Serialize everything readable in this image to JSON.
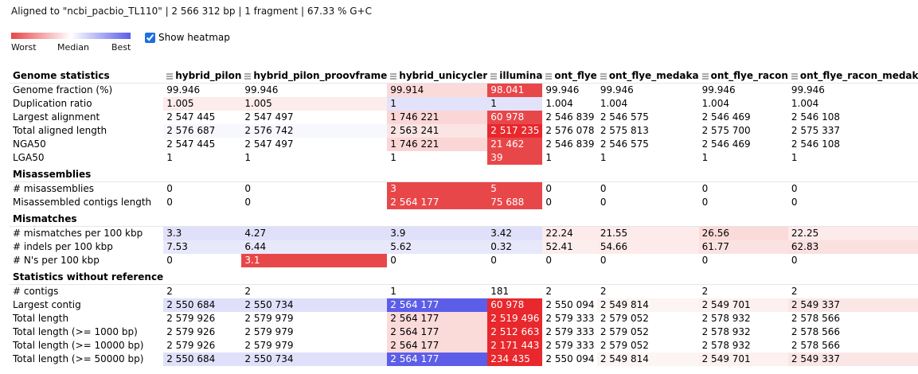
{
  "summary": "Aligned to \"ncbi_pacbio_TL110\" | 2 566 312 bp | 1 fragment | 67.33 % G+C",
  "legend": {
    "worst": "Worst",
    "median": "Median",
    "best": "Best"
  },
  "heatmap_toggle": {
    "label": "Show heatmap",
    "checked": true
  },
  "colors": {
    "worst": "#e8474a",
    "median": "#ffffff",
    "best": "#5d5ee8"
  },
  "columns": [
    "hybrid_pilon",
    "hybrid_pilon_proovframe",
    "hybrid_unicycler",
    "illumina",
    "ont_flye",
    "ont_flye_medaka",
    "ont_flye_racon",
    "ont_flye_racon_medaka"
  ],
  "sections": [
    {
      "title": "Genome statistics",
      "rows": [
        {
          "label": "Genome fraction (%)",
          "values": [
            "99.946",
            "99.946",
            "99.914",
            "98.041",
            "99.946",
            "99.946",
            "99.946",
            "99.946"
          ],
          "colors": [
            "",
            "",
            "#fbdada",
            "#e8474a",
            "",
            "",
            "",
            ""
          ]
        },
        {
          "label": "Duplication ratio",
          "values": [
            "1.005",
            "1.005",
            "1",
            "1",
            "1.004",
            "1.004",
            "1.004",
            "1.004"
          ],
          "colors": [
            "#fdecec",
            "#fdecec",
            "#e2e2fb",
            "#e2e2fb",
            "",
            "",
            "",
            ""
          ]
        },
        {
          "label": "Largest alignment",
          "values": [
            "2 547 445",
            "2 547 497",
            "1 746 221",
            "60 978",
            "2 546 839",
            "2 546 575",
            "2 546 469",
            "2 546 108"
          ],
          "colors": [
            "",
            "",
            "#fbd6d6",
            "#e8474a",
            "",
            "",
            "",
            ""
          ]
        },
        {
          "label": "Total aligned length",
          "values": [
            "2 576 687",
            "2 576 742",
            "2 563 241",
            "2 517 235",
            "2 576 078",
            "2 575 813",
            "2 575 700",
            "2 575 337"
          ],
          "colors": [
            "#f7f7fe",
            "#f7f7fe",
            "#fbe4e4",
            "#e8282c",
            "",
            "",
            "",
            ""
          ]
        },
        {
          "label": "NGA50",
          "values": [
            "2 547 445",
            "2 547 497",
            "1 746 221",
            "21 462",
            "2 546 839",
            "2 546 575",
            "2 546 469",
            "2 546 108"
          ],
          "colors": [
            "",
            "",
            "#fbd6d6",
            "#e8474a",
            "",
            "",
            "",
            ""
          ]
        },
        {
          "label": "LGA50",
          "values": [
            "1",
            "1",
            "1",
            "39",
            "1",
            "1",
            "1",
            "1"
          ],
          "colors": [
            "",
            "",
            "",
            "#e8474a",
            "",
            "",
            "",
            ""
          ]
        }
      ]
    },
    {
      "title": "Misassemblies",
      "rows": [
        {
          "label": "# misassemblies",
          "values": [
            "0",
            "0",
            "3",
            "5",
            "0",
            "0",
            "0",
            "0"
          ],
          "colors": [
            "",
            "",
            "#e8474a",
            "#e8474a",
            "",
            "",
            "",
            ""
          ]
        },
        {
          "label": "Misassembled contigs length",
          "values": [
            "0",
            "0",
            "2 564 177",
            "75 688",
            "0",
            "0",
            "0",
            "0"
          ],
          "colors": [
            "",
            "",
            "#e8474a",
            "#e8474a",
            "",
            "",
            "",
            ""
          ]
        }
      ]
    },
    {
      "title": "Mismatches",
      "rows": [
        {
          "label": "# mismatches per 100 kbp",
          "values": [
            "3.3",
            "4.27",
            "3.9",
            "3.42",
            "22.24",
            "21.55",
            "26.56",
            "22.25"
          ],
          "colors": [
            "#e0e0fa",
            "#e0e0fa",
            "#e0e0fa",
            "#e0e0fa",
            "#fdeaea",
            "#fdeaea",
            "#fbdada",
            "#fdeaea"
          ]
        },
        {
          "label": "# indels per 100 kbp",
          "values": [
            "7.53",
            "6.44",
            "5.62",
            "0.32",
            "52.41",
            "54.66",
            "61.77",
            "62.83"
          ],
          "colors": [
            "#e8e8fb",
            "#e8e8fb",
            "#e8e8fb",
            "#e8e8fb",
            "#fdeeee",
            "#fdeaea",
            "#fbe2e2",
            "#fbe0e0"
          ]
        },
        {
          "label": "# N's per 100 kbp",
          "values": [
            "0",
            "3.1",
            "0",
            "0",
            "0",
            "0",
            "0",
            "0"
          ],
          "colors": [
            "",
            "#e8474a",
            "",
            "",
            "",
            "",
            "",
            ""
          ]
        }
      ]
    },
    {
      "title": "Statistics without reference",
      "rows": [
        {
          "label": "# contigs",
          "values": [
            "2",
            "2",
            "1",
            "181",
            "2",
            "2",
            "2",
            "2"
          ],
          "colors": [
            "",
            "",
            "",
            "",
            "",
            "",
            "",
            ""
          ]
        },
        {
          "label": "Largest contig",
          "values": [
            "2 550 684",
            "2 550 734",
            "2 564 177",
            "60 978",
            "2 550 094",
            "2 549 814",
            "2 549 701",
            "2 549 337"
          ],
          "colors": [
            "#e0e0fa",
            "#e0e0fa",
            "#5d5ee8",
            "#e8282c",
            "",
            "#fdf4f4",
            "#fdf0f0",
            "#fbe6e6"
          ]
        },
        {
          "label": "Total length",
          "values": [
            "2 579 926",
            "2 579 979",
            "2 564 177",
            "2 519 496",
            "2 579 333",
            "2 579 052",
            "2 578 932",
            "2 578 566"
          ],
          "colors": [
            "",
            "",
            "#fbdada",
            "#e8282c",
            "",
            "",
            "",
            ""
          ]
        },
        {
          "label": "Total length (>= 1000 bp)",
          "values": [
            "2 579 926",
            "2 579 979",
            "2 564 177",
            "2 512 663",
            "2 579 333",
            "2 579 052",
            "2 578 932",
            "2 578 566"
          ],
          "colors": [
            "",
            "",
            "#fbdada",
            "#e8282c",
            "",
            "",
            "",
            ""
          ]
        },
        {
          "label": "Total length (>= 10000 bp)",
          "values": [
            "2 579 926",
            "2 579 979",
            "2 564 177",
            "2 171 443",
            "2 579 333",
            "2 579 052",
            "2 578 932",
            "2 578 566"
          ],
          "colors": [
            "",
            "",
            "#fbdada",
            "#e8282c",
            "",
            "",
            "",
            ""
          ]
        },
        {
          "label": "Total length (>= 50000 bp)",
          "values": [
            "2 550 684",
            "2 550 734",
            "2 564 177",
            "234 435",
            "2 550 094",
            "2 549 814",
            "2 549 701",
            "2 549 337"
          ],
          "colors": [
            "#e0e0fa",
            "#e0e0fa",
            "#5d5ee8",
            "#e8282c",
            "",
            "#fdf4f4",
            "#fdf0f0",
            "#fbe6e6"
          ]
        }
      ]
    }
  ]
}
